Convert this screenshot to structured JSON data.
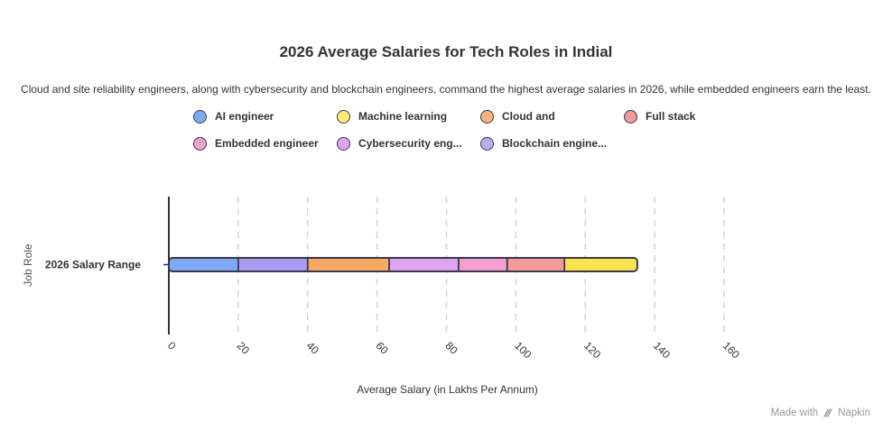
{
  "chart_data": {
    "type": "bar",
    "orientation": "horizontal-stacked",
    "title": "2026 Average Salaries for Tech Roles in Indial",
    "subtitle": "Cloud and site reliability engineers, along with cybersecurity and blockchain engineers, command the highest average salaries in 2026, while embedded engineers earn the least.",
    "xlabel": "Average Salary (in Lakhs Per Annum)",
    "ylabel": "Job Role",
    "categories": [
      "2026 Salary Range"
    ],
    "xlim": [
      0,
      160
    ],
    "xticks": [
      "0",
      "20",
      "40",
      "60",
      "80",
      "100",
      "120",
      "140",
      "160"
    ],
    "grid": true,
    "legend_position": "top",
    "legend": [
      {
        "name": "AI engineer",
        "color": "#7eaaf5"
      },
      {
        "name": "Machine learning",
        "color": "#fbed72"
      },
      {
        "name": "Cloud and",
        "color": "#f8b37c"
      },
      {
        "name": "Full stack",
        "color": "#f39a9a"
      },
      {
        "name": "Embedded engineer",
        "color": "#f59ed0"
      },
      {
        "name": "Cybersecurity eng...",
        "color": "#dea3f3"
      },
      {
        "name": "Blockchain engine...",
        "color": "#b5aef5"
      }
    ],
    "series": [
      {
        "name": "AI engineer",
        "start": 0,
        "end": 20,
        "color": "#7eaaf5"
      },
      {
        "name": "Blockchain engine...",
        "start": 20,
        "end": 40,
        "color": "#a99af2"
      },
      {
        "name": "Cloud and",
        "start": 40,
        "end": 63.5,
        "color": "#f8a862"
      },
      {
        "name": "Cybersecurity eng...",
        "start": 63.5,
        "end": 83.5,
        "color": "#dea3f3"
      },
      {
        "name": "Embedded engineer",
        "start": 83.5,
        "end": 97.5,
        "color": "#f59ed0"
      },
      {
        "name": "Full stack",
        "start": 97.5,
        "end": 114,
        "color": "#f39a9a"
      },
      {
        "name": "Machine learning",
        "start": 114,
        "end": 135,
        "color": "#fbe54f"
      }
    ]
  },
  "footer": {
    "made_with": "Made with",
    "brand": "Napkin"
  }
}
